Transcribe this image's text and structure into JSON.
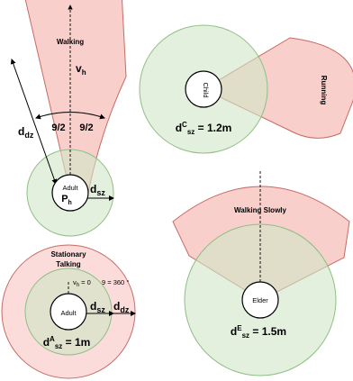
{
  "adult_walking": {
    "state": "Walking",
    "velocity_main": "v",
    "velocity_sub": "h",
    "half_angle_left": "9/2",
    "half_angle_right": "9/2",
    "dist_main": "d",
    "dist_sub": "dz",
    "sz_main": "d",
    "sz_sub": "sz",
    "person": "Adult",
    "position_main": "P",
    "position_sub": "h"
  },
  "child_running": {
    "state": "Running",
    "person": "Child",
    "eq_main": "d",
    "eq_sup": "C",
    "eq_sub": "sz",
    "eq_value": " = 1.2m"
  },
  "elder_walking_slowly": {
    "state": "Walking Slowly",
    "person": "Elder",
    "eq_main": "d",
    "eq_sup": "E",
    "eq_sub": "sz",
    "eq_value": " = 1.5m"
  },
  "adult_stationary": {
    "state_line1": "Stationary",
    "state_line2": "Talking",
    "velocity_main": "v",
    "velocity_sub": "h",
    "velocity_value": " = 0",
    "angle_text": "9 = 360 °",
    "person": "Adult",
    "sz_main": "d",
    "sz_sub": "sz",
    "dz_main": "d",
    "dz_sub": "dz",
    "eq_main": "d",
    "eq_sup": "A",
    "eq_sub": "sz",
    "eq_value": " = 1m"
  },
  "colors": {
    "danger_zone": "#f4a7a3",
    "safety_zone": "#cfe6c6",
    "person_fill": "#ffffff"
  }
}
